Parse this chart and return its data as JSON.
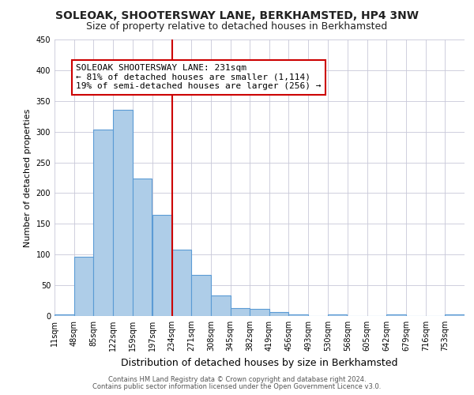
{
  "title1": "SOLEOAK, SHOOTERSWAY LANE, BERKHAMSTED, HP4 3NW",
  "title2": "Size of property relative to detached houses in Berkhamsted",
  "xlabel": "Distribution of detached houses by size in Berkhamsted",
  "ylabel": "Number of detached properties",
  "footer1": "Contains HM Land Registry data © Crown copyright and database right 2024.",
  "footer2": "Contains public sector information licensed under the Open Government Licence v3.0.",
  "annotation_line1": "SOLEOAK SHOOTERSWAY LANE: 231sqm",
  "annotation_line2": "← 81% of detached houses are smaller (1,114)",
  "annotation_line3": "19% of semi-detached houses are larger (256) →",
  "vline_x": 234,
  "bar_color": "#aecde8",
  "bar_edge_color": "#5b9bd5",
  "vline_color": "#cc0000",
  "annotation_box_edgecolor": "#cc0000",
  "background_color": "#ffffff",
  "grid_color": "#c8c8d8",
  "bins": [
    11,
    48,
    85,
    122,
    159,
    197,
    234,
    271,
    308,
    345,
    382,
    419,
    456,
    493,
    530,
    568,
    605,
    642,
    679,
    716,
    753
  ],
  "counts": [
    3,
    97,
    303,
    335,
    224,
    165,
    108,
    67,
    33,
    13,
    11,
    7,
    3,
    0,
    3,
    0,
    0,
    3,
    0,
    0,
    3
  ],
  "ylim": [
    0,
    450
  ],
  "yticks": [
    0,
    50,
    100,
    150,
    200,
    250,
    300,
    350,
    400,
    450
  ],
  "title1_fontsize": 10,
  "title2_fontsize": 9,
  "ylabel_fontsize": 8,
  "xlabel_fontsize": 9,
  "tick_fontsize": 7,
  "footer_fontsize": 6,
  "annot_fontsize": 8
}
